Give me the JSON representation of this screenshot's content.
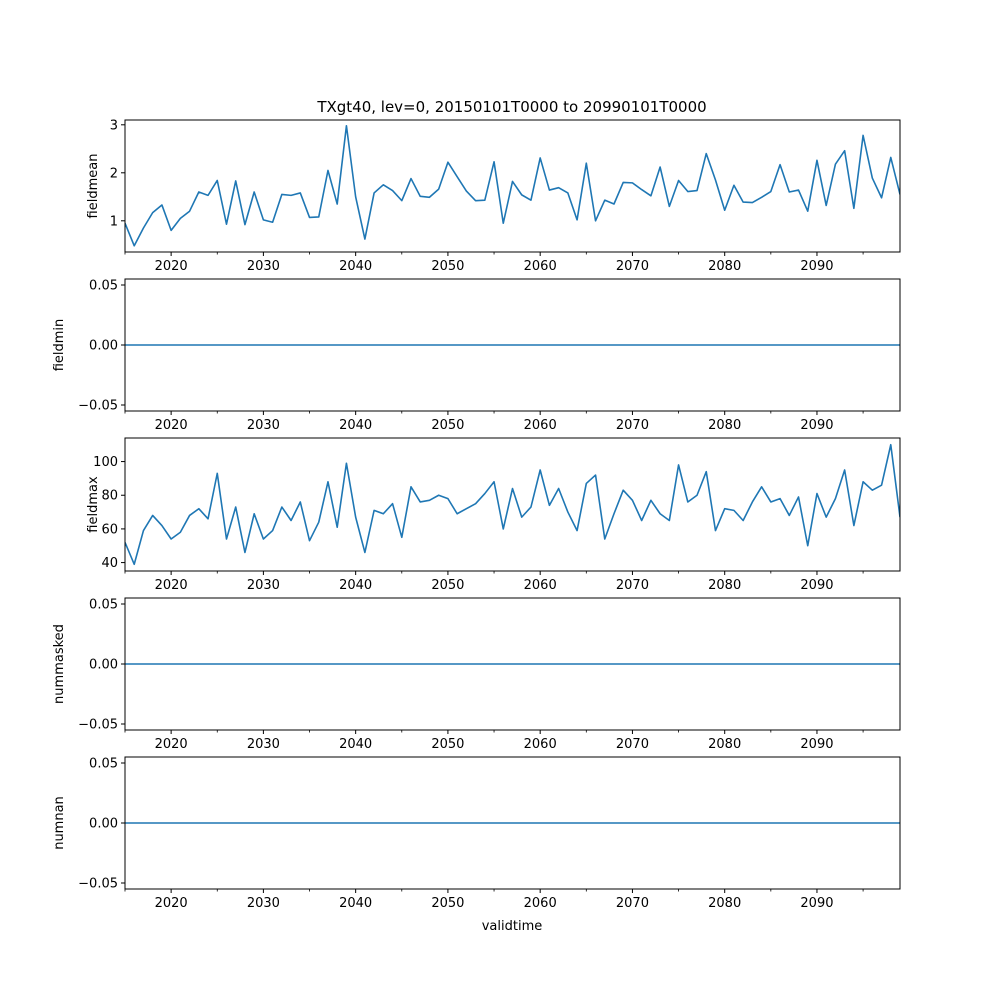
{
  "figure": {
    "title": "TXgt40, lev=0, 20150101T0000 to 20990101T0000",
    "xlabel": "validtime",
    "line_color": "#1f77b4"
  },
  "chart_data": [
    {
      "type": "line",
      "name": "fieldmean",
      "ylabel": "fieldmean",
      "xlim": [
        2015,
        2099
      ],
      "ylim": [
        0.35,
        3.1
      ],
      "yticks": [
        1,
        2,
        3
      ],
      "ytick_labels": [
        "1",
        "2",
        "3"
      ],
      "xticks": [
        2020,
        2030,
        2040,
        2050,
        2060,
        2070,
        2080,
        2090
      ],
      "xtick_labels": [
        "2020",
        "2030",
        "2040",
        "2050",
        "2060",
        "2070",
        "2080",
        "2090"
      ],
      "x_start": 2015,
      "values": [
        0.95,
        0.48,
        0.85,
        1.17,
        1.33,
        0.8,
        1.05,
        1.2,
        1.6,
        1.53,
        1.84,
        0.93,
        1.83,
        0.92,
        1.6,
        1.02,
        0.97,
        1.55,
        1.53,
        1.58,
        1.07,
        1.08,
        2.05,
        1.35,
        2.98,
        1.5,
        0.62,
        1.58,
        1.75,
        1.63,
        1.42,
        1.88,
        1.51,
        1.49,
        1.66,
        2.22,
        1.92,
        1.62,
        1.42,
        1.43,
        2.23,
        0.95,
        1.82,
        1.54,
        1.43,
        2.31,
        1.64,
        1.69,
        1.58,
        1.02,
        2.2,
        1.0,
        1.43,
        1.35,
        1.8,
        1.79,
        1.65,
        1.52,
        2.12,
        1.3,
        1.84,
        1.61,
        1.63,
        2.4,
        1.85,
        1.22,
        1.74,
        1.39,
        1.38,
        1.49,
        1.61,
        2.17,
        1.6,
        1.64,
        1.2,
        2.26,
        1.32,
        2.18,
        2.46,
        1.26,
        2.78,
        1.89,
        1.48,
        2.32,
        1.55
      ]
    },
    {
      "type": "line",
      "name": "fieldmin",
      "ylabel": "fieldmin",
      "xlim": [
        2015,
        2099
      ],
      "ylim": [
        -0.055,
        0.055
      ],
      "yticks": [
        -0.05,
        0,
        0.05
      ],
      "ytick_labels": [
        "−0.05",
        "0.00",
        "0.05"
      ],
      "xticks": [
        2020,
        2030,
        2040,
        2050,
        2060,
        2070,
        2080,
        2090
      ],
      "xtick_labels": [
        "2020",
        "2030",
        "2040",
        "2050",
        "2060",
        "2070",
        "2080",
        "2090"
      ],
      "x_start": 2015,
      "constant_value": 0
    },
    {
      "type": "line",
      "name": "fieldmax",
      "ylabel": "fieldmax",
      "xlim": [
        2015,
        2099
      ],
      "ylim": [
        35,
        114
      ],
      "yticks": [
        40,
        60,
        80,
        100
      ],
      "ytick_labels": [
        "40",
        "60",
        "80",
        "100"
      ],
      "xticks": [
        2020,
        2030,
        2040,
        2050,
        2060,
        2070,
        2080,
        2090
      ],
      "xtick_labels": [
        "2020",
        "2030",
        "2040",
        "2050",
        "2060",
        "2070",
        "2080",
        "2090"
      ],
      "x_start": 2015,
      "values": [
        52,
        39,
        59,
        68,
        62,
        54,
        58,
        68,
        72,
        66,
        93,
        54,
        73,
        46,
        69,
        54,
        59,
        73,
        65,
        76,
        53,
        64,
        88,
        61,
        99,
        67,
        46,
        71,
        69,
        75,
        55,
        85,
        76,
        77,
        80,
        78,
        69,
        72,
        75,
        81,
        88,
        60,
        84,
        67,
        73,
        95,
        74,
        84,
        70,
        59,
        87,
        92,
        54,
        69,
        83,
        77,
        65,
        77,
        69,
        65,
        98,
        76,
        80,
        94,
        59,
        72,
        71,
        65,
        76,
        85,
        76,
        78,
        68,
        79,
        50,
        81,
        67,
        78,
        95,
        62,
        88,
        83,
        86,
        110,
        67
      ]
    },
    {
      "type": "line",
      "name": "nummasked",
      "ylabel": "nummasked",
      "xlim": [
        2015,
        2099
      ],
      "ylim": [
        -0.055,
        0.055
      ],
      "yticks": [
        -0.05,
        0,
        0.05
      ],
      "ytick_labels": [
        "−0.05",
        "0.00",
        "0.05"
      ],
      "xticks": [
        2020,
        2030,
        2040,
        2050,
        2060,
        2070,
        2080,
        2090
      ],
      "xtick_labels": [
        "2020",
        "2030",
        "2040",
        "2050",
        "2060",
        "2070",
        "2080",
        "2090"
      ],
      "x_start": 2015,
      "constant_value": 0
    },
    {
      "type": "line",
      "name": "numnan",
      "ylabel": "numnan",
      "xlim": [
        2015,
        2099
      ],
      "ylim": [
        -0.055,
        0.055
      ],
      "yticks": [
        -0.05,
        0,
        0.05
      ],
      "ytick_labels": [
        "−0.05",
        "0.00",
        "0.05"
      ],
      "xticks": [
        2020,
        2030,
        2040,
        2050,
        2060,
        2070,
        2080,
        2090
      ],
      "xtick_labels": [
        "2020",
        "2030",
        "2040",
        "2050",
        "2060",
        "2070",
        "2080",
        "2090"
      ],
      "x_start": 2015,
      "constant_value": 0
    }
  ]
}
